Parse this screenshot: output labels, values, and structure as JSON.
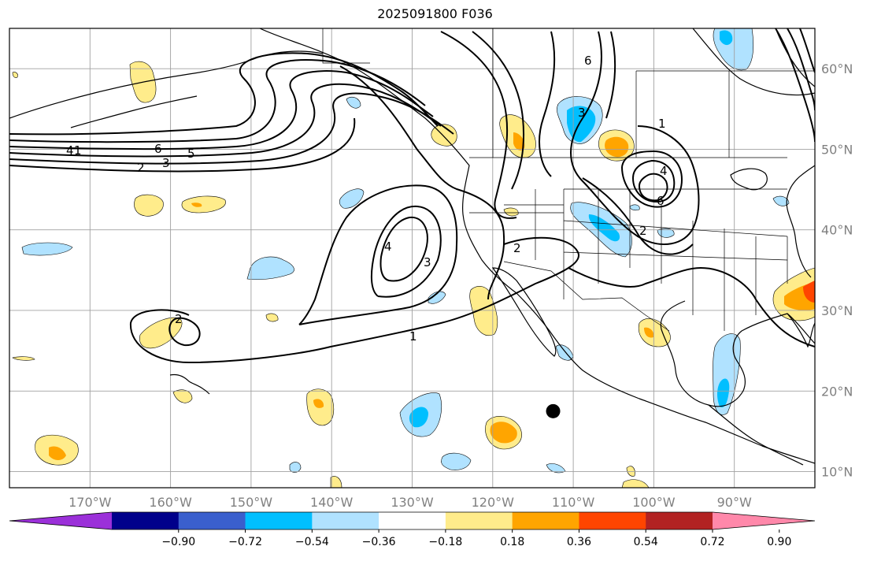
{
  "title": "2025091800 F036",
  "map": {
    "projection": "cylindrical lat-lon",
    "lon_range": [
      -180,
      -80
    ],
    "lat_range": [
      8,
      65
    ],
    "gridlines": true,
    "lon_ticks": [
      "170°W",
      "160°W",
      "150°W",
      "140°W",
      "130°W",
      "120°W",
      "110°W",
      "100°W",
      "90°W"
    ],
    "lat_ticks": [
      "60°N",
      "50°N",
      "40°N",
      "30°N",
      "20°N",
      "10°N"
    ],
    "features": [
      "coastlines",
      "country borders",
      "US state borders"
    ],
    "marker": {
      "type": "filled-dot",
      "lon": -112.5,
      "lat": 17.5,
      "color": "#000000"
    }
  },
  "contours": {
    "color": "#000000",
    "labels": [
      "1",
      "2",
      "3",
      "4",
      "5",
      "6",
      "2",
      "3",
      "4",
      "1",
      "2",
      "3",
      "4",
      "6",
      "2",
      "1",
      "6"
    ]
  },
  "colorbar": {
    "ticks": [
      "−0.90",
      "−0.72",
      "−0.54",
      "−0.36",
      "−0.18",
      "0.18",
      "0.36",
      "0.54",
      "0.72",
      "0.90"
    ],
    "colors": [
      "#9b30d9",
      "#00008b",
      "#3a5fcd",
      "#00bfff",
      "#b0e2ff",
      "#ffffff",
      "#ffec8b",
      "#ffa500",
      "#ff4500",
      "#b22222",
      "#ff88aa"
    ],
    "extend": "both"
  }
}
